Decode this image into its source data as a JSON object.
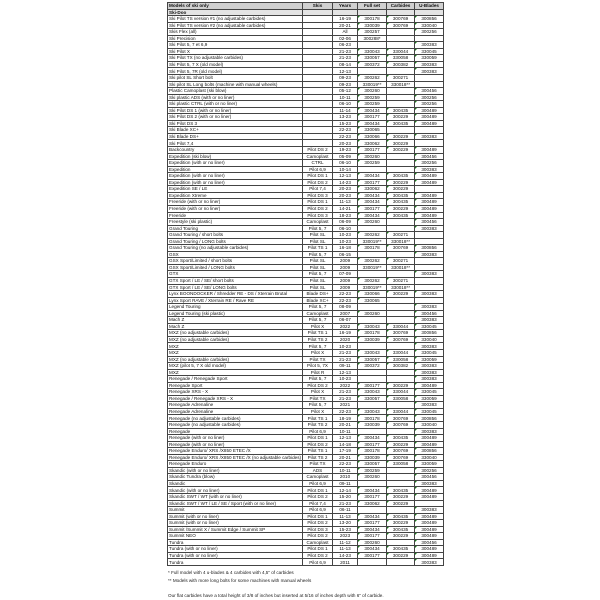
{
  "headers": [
    "Models of ski only",
    "Skis",
    "Years",
    "Full set",
    "Carbides",
    "U-Blades"
  ],
  "brand": "Ski-Doo",
  "rows": [
    [
      "Ski Pilot TS version #1 (no adjustable carbides)",
      "",
      "16-19",
      "300178",
      "300769",
      "300856"
    ],
    [
      "Ski Pilot TS version #2 (no adjustable carbides)",
      "",
      "20-21",
      "330039",
      "300769",
      "330040"
    ],
    [
      "Skis Flex (all)",
      "",
      "All",
      "300257",
      "",
      "300256"
    ],
    [
      "Ski Precision",
      "",
      "02-06",
      "300288*",
      "",
      ""
    ],
    [
      "Ski Pilot 5, 7 et 6,9",
      "",
      "06-23",
      "",
      "",
      "300383"
    ],
    [
      "Ski Pilot X",
      "",
      "21-23",
      "330043",
      "330044",
      "330045"
    ],
    [
      "Ski Pilot TX (no adjustable carbides)",
      "",
      "21-23",
      "330057",
      "330058",
      "330059"
    ],
    [
      "Ski Pilot 5, 7 X (old model)",
      "",
      "08-14",
      "300372",
      "300382",
      "300383"
    ],
    [
      "Ski Pilot 5, 7R (old model)",
      "",
      "12-13",
      "",
      "",
      "300383"
    ],
    [
      "Ski pilot SL Short bolt",
      "",
      "09-23",
      "300262",
      "300271",
      ""
    ],
    [
      "Ski pilot SL Long bolts (machine with manual wheels)",
      "",
      "09-23",
      "330019**",
      "330018**",
      ""
    ],
    [
      "Plastic Camoplast (ski blow)",
      "",
      "05-12",
      "300260",
      "",
      "300456"
    ],
    [
      "Ski plastic ADS (with or no liner)",
      "",
      "10-11",
      "300259",
      "",
      "300256"
    ],
    [
      "Ski plastic CTRL (with or no liner)",
      "",
      "06-10",
      "300259",
      "",
      "300256"
    ],
    [
      "Ski Pilot DS 1 (with or no liner)",
      "",
      "11-14",
      "300434",
      "300435",
      "300489"
    ],
    [
      "Ski Pilot DS 2 (with or no liner)",
      "",
      "13-23",
      "300177",
      "300229",
      "300489"
    ],
    [
      "Ski Pilot DS 3",
      "",
      "15-23",
      "300434",
      "300435",
      "300489"
    ],
    [
      "Ski Blade XC+",
      "",
      "22-23",
      "330065",
      "",
      ""
    ],
    [
      "Ski Blade DS+",
      "",
      "22-23",
      "330066",
      "300229",
      "300383"
    ],
    [
      "Ski Pilot 7,4",
      "",
      "20-23",
      "330062",
      "300229",
      ""
    ],
    [
      "Backcountry",
      "Pilot DS 2",
      "19-23",
      "300177",
      "300229",
      "300489"
    ],
    [
      "Expedition (ski blow)",
      "Camoplast",
      "05-09",
      "300260",
      "",
      "300456"
    ],
    [
      "Expedition (with or no liner)",
      "CTRL",
      "06-10",
      "300259",
      "",
      "300256"
    ],
    [
      "Expedition",
      "Pilot 6,9",
      "10-14",
      "",
      "",
      "300383"
    ],
    [
      "Expedition (with or no liner)",
      "Pilot DS 1",
      "12-13",
      "300434",
      "300435",
      "300489"
    ],
    [
      "Expedition (with or no liner)",
      "Pilot DS 2",
      "14-23",
      "300177",
      "300229",
      "300489"
    ],
    [
      "Expedition SE / LE",
      "Pilot 7,4",
      "20-23",
      "330062",
      "300229",
      ""
    ],
    [
      "Expedition Xtreme",
      "Pilot DS 3",
      "20-23",
      "300434",
      "300435",
      "300489"
    ],
    [
      "Freeride (with or no liner)",
      "Pilot DS 1",
      "11-13",
      "300434",
      "300435",
      "300489"
    ],
    [
      "Freeride (with or no liner)",
      "Pilot DS 2",
      "14-21",
      "300177",
      "300229",
      "300489"
    ],
    [
      "Freeride",
      "Pilot DS 3",
      "18-23",
      "300434",
      "300435",
      "300489"
    ],
    [
      "Freestyle (ski plastic)",
      "Camoplast",
      "06-09",
      "300260",
      "",
      "300456"
    ],
    [
      "Grand Touring",
      "Pilot 5, 7",
      "06-10",
      "",
      "",
      "300383"
    ],
    [
      "Grand Touring / short bolts",
      "Pilot SL",
      "10-23",
      "300262",
      "300271",
      ""
    ],
    [
      "Grand Touring / LONG bolts",
      "Pilot SL",
      "10-23",
      "330019**",
      "330018**",
      ""
    ],
    [
      "Grand Touring (no adjustable carbides)",
      "Pilot TS 1",
      "16-18",
      "300178",
      "300769",
      "300856"
    ],
    [
      "GSX",
      "Pilot 5, 7",
      "06-15",
      "",
      "",
      "300383"
    ],
    [
      "GSX Sport/Limited / short bolts",
      "Pilot SL",
      "2009",
      "300262",
      "300271",
      ""
    ],
    [
      "GSX Sport/Limited / LONG bolts",
      "Pilot SL",
      "2009",
      "330019**",
      "330018**",
      ""
    ],
    [
      "GTX",
      "Pilot 5, 7",
      "07-09",
      "",
      "",
      "300383"
    ],
    [
      "GTX Sport / LE / SE/ short bolts",
      "Pilot SL",
      "2009",
      "300262",
      "300271",
      ""
    ],
    [
      "GTX Sport / LE / SE/ LONG bolts",
      "Pilot SL",
      "2009",
      "330019**",
      "330018**",
      ""
    ],
    [
      "Lynx BOONDOCKER / Shredder RE - DS / Xterrain Brutal",
      "Blade DS+",
      "22-23",
      "330066",
      "300229",
      "300383"
    ],
    [
      "Lynx Sport RAVE / Xterrain RE / Rave RE",
      "Blade XC+",
      "22-23",
      "330065",
      "",
      ""
    ],
    [
      "Legend Touring",
      "Pilot 5, 7",
      "08-09",
      "",
      "",
      "300383"
    ],
    [
      "Legend Touring (ski plastic)",
      "Camoplast",
      "2007",
      "300260",
      "",
      "300456"
    ],
    [
      "Mach Z",
      "Pilot 5, 7",
      "06-07",
      "",
      "",
      "300383"
    ],
    [
      "Mach Z",
      "Pilot X",
      "2022",
      "330043",
      "330044",
      "330045"
    ],
    [
      "MXZ (no adjustable carbides)",
      "Pilot TS 1",
      "16-19",
      "300178",
      "300769",
      "300856"
    ],
    [
      "MXZ (no adjustable carbides)",
      "Pilot TS 2",
      "2020",
      "330039",
      "300769",
      "330040"
    ],
    [
      "MXZ",
      "Pilot 5, 7",
      "10-23",
      "",
      "",
      "300383"
    ],
    [
      "MXZ",
      "Pilot X",
      "21-23",
      "330043",
      "330044",
      "330045"
    ],
    [
      "MXZ (no adjustable carbides)",
      "Pilot TX",
      "21-23",
      "330057",
      "330058",
      "330059"
    ],
    [
      "MXZ (pilot 5, 7 X old model)",
      "Pilot 5, 7X",
      "09-11",
      "300372",
      "300382",
      "300383"
    ],
    [
      "MXZ",
      "Pilot R",
      "12-13",
      "",
      "",
      "300383"
    ],
    [
      "Renegade / Renegade Sport",
      "Pilot 5, 7",
      "10-23",
      "",
      "",
      "300383"
    ],
    [
      "Renegade Sport",
      "Pilot DS 2",
      "2022",
      "300177",
      "300229",
      "300489"
    ],
    [
      "Renegade XRS - X",
      "Pilot X",
      "21-23",
      "330043",
      "330044",
      "330045"
    ],
    [
      "Renegade / Renegade XRS - X",
      "Pilot TX",
      "21-23",
      "330057",
      "330058",
      "330059"
    ],
    [
      "Renegade Adrenaline",
      "Pilot 5, 7",
      "2021",
      "",
      "",
      "300383"
    ],
    [
      "Renegade Adrenaline",
      "Pilot X",
      "22-23",
      "330043",
      "330044",
      "330045"
    ],
    [
      "Renegade (no adjustable carbides)",
      "Pilot TS 1",
      "18-19",
      "300178",
      "300769",
      "300856"
    ],
    [
      "Renegade (no adjustable carbides)",
      "Pilot TS 2",
      "20-21",
      "330039",
      "300769",
      "330040"
    ],
    [
      "Renegade",
      "Pilot 6,9",
      "10-11",
      "",
      "",
      "300383"
    ],
    [
      "Renegade (with or no liner)",
      "Pilot DS 1",
      "12-13",
      "300434",
      "300435",
      "300489"
    ],
    [
      "Renegade (with or no liner)",
      "Pilot DS 2",
      "14-18",
      "300177",
      "300229",
      "300489"
    ],
    [
      "Renegade Enduro/ XRS /X850 ETEC /X",
      "Pilot TS 1",
      "17-19",
      "300178",
      "300769",
      "300856"
    ],
    [
      "Renegade Enduro/ XRS /X850 ETEC /X (no adjustable carbides)",
      "Pilot TS 2",
      "20-21",
      "330039",
      "300769",
      "330040"
    ],
    [
      "Renegade Enduro",
      "Pilot TX",
      "22-23",
      "330057",
      "330058",
      "330059"
    ],
    [
      "Skandic (with or no liner)",
      "ADS",
      "10-11",
      "300259",
      "",
      "300256"
    ],
    [
      "Skandic Tundra (blow)",
      "Camoplast",
      "2010",
      "300260",
      "",
      "300456"
    ],
    [
      "Skandic",
      "Pilot 6,9",
      "09-11",
      "",
      "",
      "300383"
    ],
    [
      "Skandic (with or no liner)",
      "Pilot DS 1",
      "12-14",
      "300434",
      "300435",
      "300489"
    ],
    [
      "Skandic SWT / WT (with or no liner)",
      "Pilot DS 2",
      "15-20",
      "300177",
      "300229",
      "300489"
    ],
    [
      "Skandic SWT / WT / LE / SE / Sport (with or no liner)",
      "Pilot 7,4",
      "21-23",
      "330062",
      "300229",
      ""
    ],
    [
      "Summit",
      "Pilot 6,9",
      "06-11",
      "",
      "",
      "300383"
    ],
    [
      "Summit (with or no liner)",
      "Pilot DS 1",
      "11-13",
      "300434",
      "300435",
      "300489"
    ],
    [
      "Summit (with or no liner)",
      "Pilot DS 2",
      "13-20",
      "300177",
      "300229",
      "300489"
    ],
    [
      "Summit /Summit X / Summit Edge / Summit SP",
      "Pilot DS 3",
      "15-23",
      "300434",
      "300435",
      "300489"
    ],
    [
      "Summit NEO",
      "Pilot DS 2",
      "2023",
      "300177",
      "300229",
      "300489"
    ],
    [
      "Tundra",
      "Camoplast",
      "11-12",
      "300260",
      "",
      "300456"
    ],
    [
      "Tundra (with or no liner)",
      "Pilot DS 1",
      "11-13",
      "300434",
      "300435",
      "300489"
    ],
    [
      "Tundra (with or no liner)",
      "Pilot DS 2",
      "14-23",
      "300177",
      "300229",
      "300489"
    ],
    [
      "Tundra",
      "Pilot 6,9",
      "2011",
      "",
      "",
      "300383"
    ]
  ],
  "notes": {
    "full_model": "* Full model with 4 u-blades & 4 carbides with 4,5\" of carbides",
    "long_bolts": "** Models with more long bolts for some machines with manual wheels",
    "carbide_height": "Our flat carbides have a total height of 3/8 of inches but inserted at 5/16 of inches depth with 6\" of carbide."
  },
  "colors": {
    "header_bg": "#d0d0d0",
    "indicator": "#1a7a1a"
  }
}
